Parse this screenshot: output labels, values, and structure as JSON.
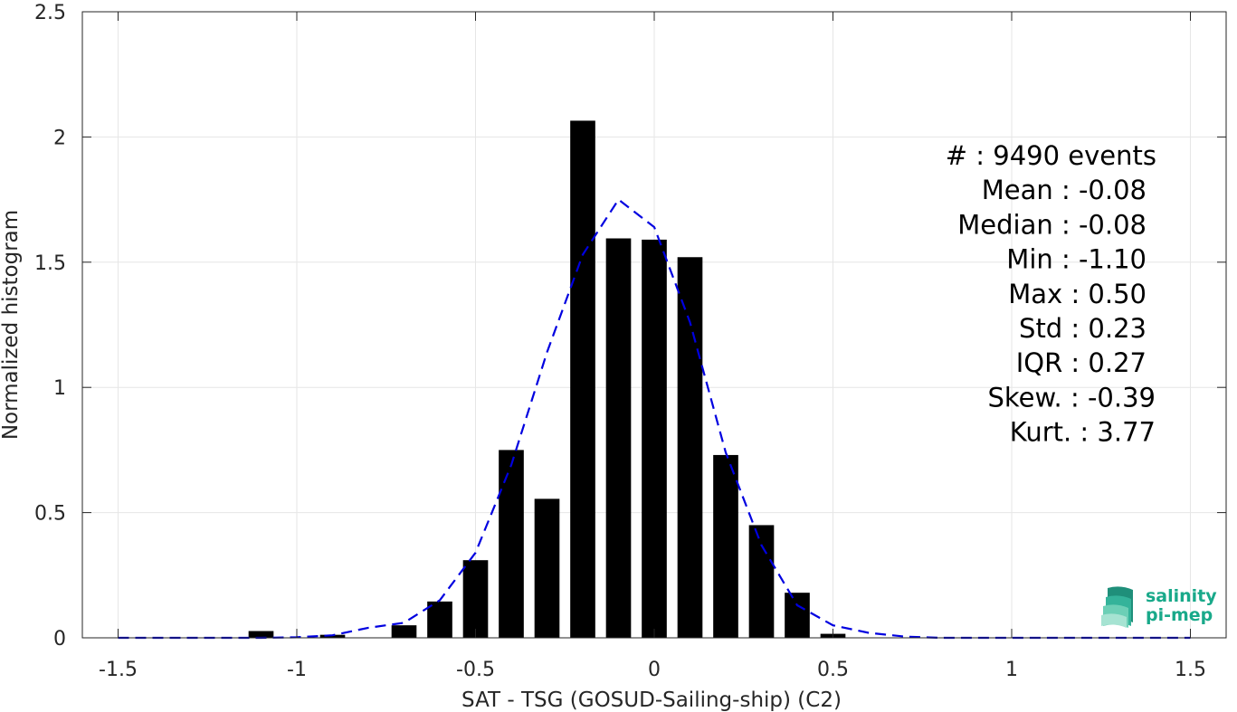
{
  "chart_data": {
    "type": "bar",
    "xlabel": "SAT - TSG (GOSUD-Sailing-ship) (C2)",
    "ylabel": "Normalized histogram",
    "xlim": [
      -1.6,
      1.6
    ],
    "ylim": [
      0,
      2.5
    ],
    "xticks": [
      -1.5,
      -1,
      -0.5,
      0,
      0.5,
      1,
      1.5
    ],
    "xtick_labels": [
      "-1.5",
      "-1",
      "-0.5",
      "0",
      "0.5",
      "1",
      "1.5"
    ],
    "yticks": [
      0,
      0.5,
      1,
      1.5,
      2,
      2.5
    ],
    "ytick_labels": [
      "0",
      "0.5",
      "1",
      "1.5",
      "2",
      "2.5"
    ],
    "grid": true,
    "bars": {
      "color": "#000000",
      "bin_width": 0.1,
      "x": [
        -1.1,
        -1.0,
        -0.9,
        -0.8,
        -0.7,
        -0.6,
        -0.5,
        -0.4,
        -0.3,
        -0.2,
        -0.1,
        0.0,
        0.1,
        0.2,
        0.3,
        0.4,
        0.5
      ],
      "values": [
        0.027,
        0.0,
        0.012,
        0.0,
        0.05,
        0.145,
        0.31,
        0.75,
        0.555,
        2.065,
        1.595,
        1.59,
        1.52,
        0.73,
        0.45,
        0.18,
        0.016
      ]
    },
    "fit_curve": {
      "color": "#0000e0",
      "style": "dashed",
      "x": [
        -1.5,
        -1.4,
        -1.3,
        -1.2,
        -1.1,
        -1.0,
        -0.9,
        -0.8,
        -0.7,
        -0.6,
        -0.5,
        -0.4,
        -0.3,
        -0.2,
        -0.1,
        0.0,
        0.1,
        0.2,
        0.3,
        0.4,
        0.5,
        0.6,
        0.7,
        0.8,
        0.9,
        1.0,
        1.1,
        1.2,
        1.3,
        1.4,
        1.5
      ],
      "y": [
        0,
        0,
        0,
        0,
        0,
        0.002,
        0.01,
        0.04,
        0.06,
        0.15,
        0.34,
        0.69,
        1.14,
        1.53,
        1.75,
        1.64,
        1.26,
        0.74,
        0.37,
        0.13,
        0.05,
        0.02,
        0.005,
        0,
        0,
        0,
        0,
        0,
        0,
        0,
        0
      ]
    },
    "annotations": [
      "#  : 9490 events",
      "Mean : -0.08",
      "Median : -0.08",
      "Min : -1.10",
      "Max : 0.50",
      "Std : 0.23",
      "IQR : 0.27",
      "Skew. : -0.39",
      "Kurt. : 3.77"
    ]
  },
  "logo": {
    "line1": "salinity",
    "line2": "pi-mep",
    "color": "#19a98a"
  }
}
